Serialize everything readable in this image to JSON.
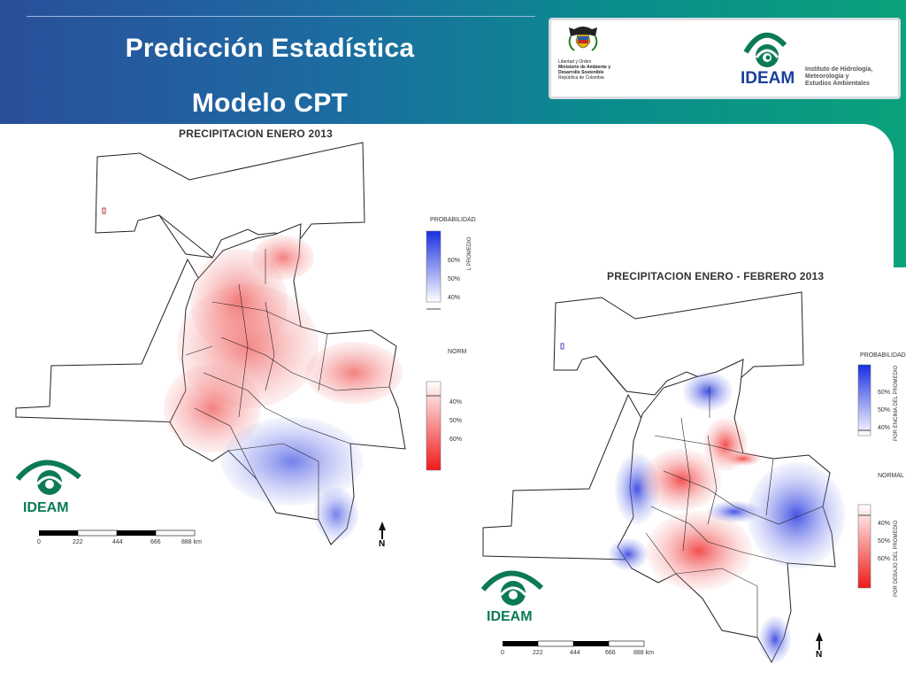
{
  "slide": {
    "title_line1": "Predicción Estadística",
    "title_line2": "Modelo CPT"
  },
  "logos": {
    "ministry_lines": [
      "Libertad y Orden",
      "Ministerio de Ambiente y",
      "Desarrollo Sostenible",
      "República de Colombia"
    ],
    "ideam_name": "IDEAM",
    "ideam_desc": [
      "Instituto de Hidrología,",
      "Meteorología y",
      "Estudios Ambientales"
    ]
  },
  "map_enero": {
    "title": "PRECIPITACION   ENERO 2013",
    "legend_above_title": "PROBABILIDAD",
    "legend_above_ticks": [
      "60%",
      "50%",
      "40%"
    ],
    "legend_above_side": "L PROMEDIO",
    "legend_normal": "NORM",
    "legend_below_ticks": [
      "40%",
      "50%",
      "60%"
    ],
    "scale_ticks": [
      "0",
      "222",
      "444",
      "666",
      "888 km"
    ],
    "north": "N",
    "watermark": "IDEAM"
  },
  "map_enero_febrero": {
    "title": "PRECIPITACION   ENERO - FEBRERO 2013",
    "legend_above_title": "PROBABILIDAD",
    "legend_above_ticks": [
      "60%",
      "50%",
      "40%"
    ],
    "legend_above_side": "POR ENCIMA DEL PROMEDIO",
    "legend_normal": "NORMAL",
    "legend_below_ticks": [
      "40%",
      "50%",
      "60%"
    ],
    "legend_below_side": "POR DEBAJO DEL PROMEDIO",
    "scale_ticks": [
      "0",
      "222",
      "444",
      "666",
      "888 km"
    ],
    "north": "N",
    "watermark": "IDEAM"
  },
  "colors": {
    "above": "#1a2fe0",
    "below": "#f01a1a",
    "normal": "#ffffff",
    "ideam_green": "#0c7a55",
    "ideam_blue": "#1a3f9a"
  }
}
